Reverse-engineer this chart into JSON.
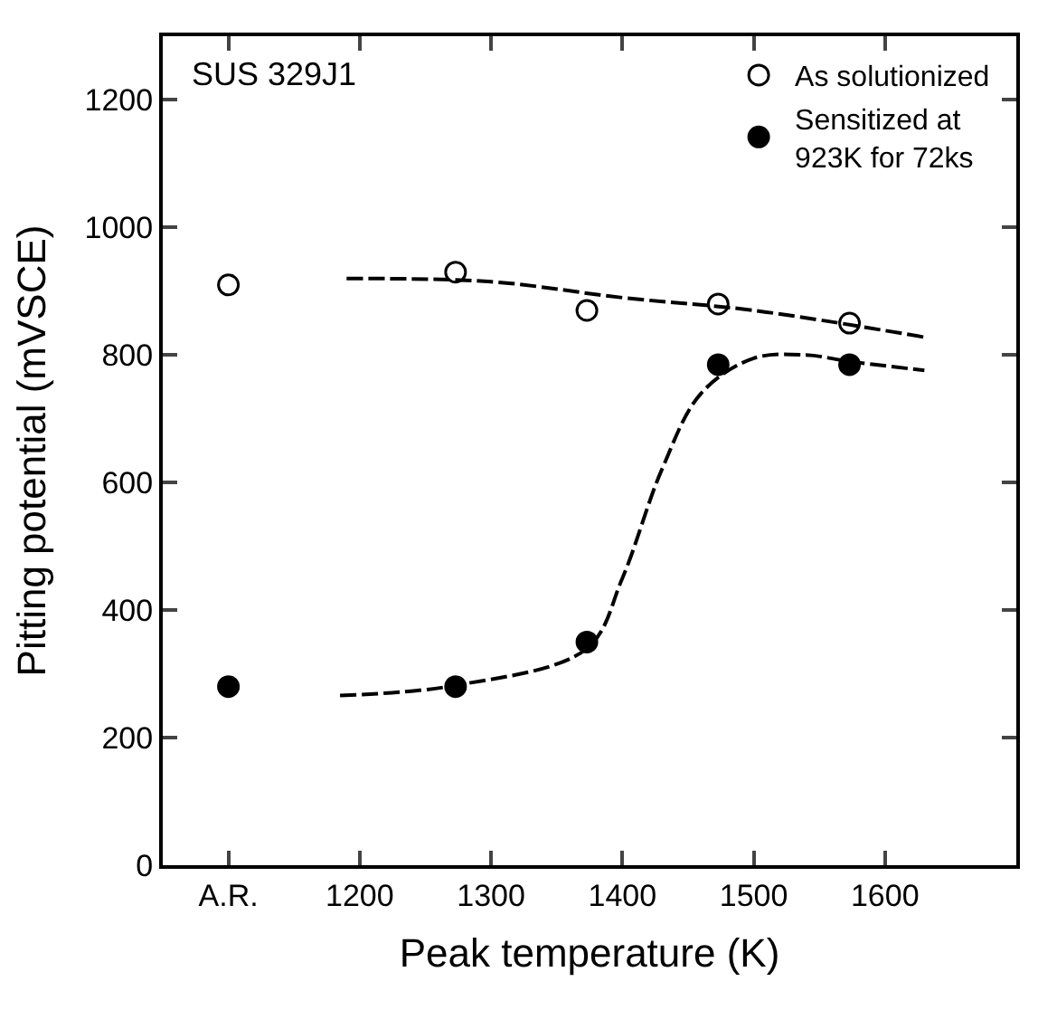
{
  "chart_data": {
    "type": "scatter",
    "xlabel": "Peak temperature (K)",
    "ylabel": "Pitting potential (mVSCE)",
    "annotations": [
      "SUS 329J1"
    ],
    "xlim": [
      1050,
      1700
    ],
    "xticks": [
      {
        "value": 1100,
        "label": "A.R."
      },
      1200,
      1300,
      1400,
      1500,
      1600
    ],
    "ylim": [
      0,
      1300
    ],
    "yticks": [
      0,
      200,
      400,
      600,
      800,
      1000,
      1200
    ],
    "legend": "top right",
    "marker": "circle",
    "series": [
      {
        "name": "As solutionized",
        "color": "#ffffff",
        "x": [
          1100,
          1273,
          1373,
          1473,
          1573
        ],
        "values": [
          910,
          930,
          870,
          880,
          850
        ]
      },
      {
        "name": "Sensitized at\n923K for 72ks",
        "color": "#000000",
        "x": [
          1100,
          1273,
          1373,
          1473,
          1573
        ],
        "values": [
          280,
          280,
          350,
          785,
          785
        ]
      },
      {
        "type": "line",
        "marker": "none",
        "line_style": "dashed",
        "color": "#000000",
        "x": [
          1190,
          1300,
          1400,
          1500,
          1630
        ],
        "values": [
          920,
          915,
          890,
          870,
          828
        ]
      },
      {
        "type": "line",
        "marker": "none",
        "line_style": "dashed",
        "color": "#000000",
        "x": [
          1185,
          1273,
          1373,
          1400,
          1430,
          1460,
          1500,
          1540,
          1573,
          1630
        ],
        "values": [
          266,
          282,
          340,
          450,
          620,
          740,
          795,
          800,
          790,
          776
        ]
      }
    ]
  }
}
